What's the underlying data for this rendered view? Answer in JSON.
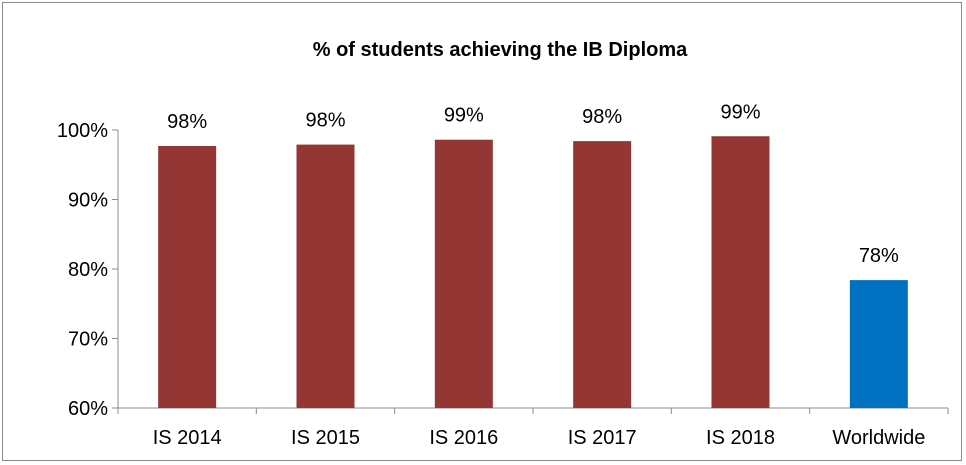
{
  "chart_data": {
    "type": "bar",
    "title": "% of students achieving the IB Diploma",
    "xlabel": "",
    "ylabel": "",
    "categories": [
      "IS 2014",
      "IS 2015",
      "IS 2016",
      "IS 2017",
      "IS 2018",
      "Worldwide"
    ],
    "values": [
      97.7,
      97.9,
      98.6,
      98.4,
      99.1,
      78.4
    ],
    "data_labels": [
      "98%",
      "98%",
      "99%",
      "98%",
      "99%",
      "78%"
    ],
    "bar_colors": [
      "#943634",
      "#943634",
      "#943634",
      "#943634",
      "#943634",
      "#0070c0"
    ],
    "ylim": [
      60,
      100
    ],
    "yticks": [
      60,
      70,
      80,
      90,
      100
    ],
    "ytick_labels": [
      "60%",
      "70%",
      "80%",
      "90%",
      "100%"
    ],
    "grid": false,
    "legend": "none"
  }
}
